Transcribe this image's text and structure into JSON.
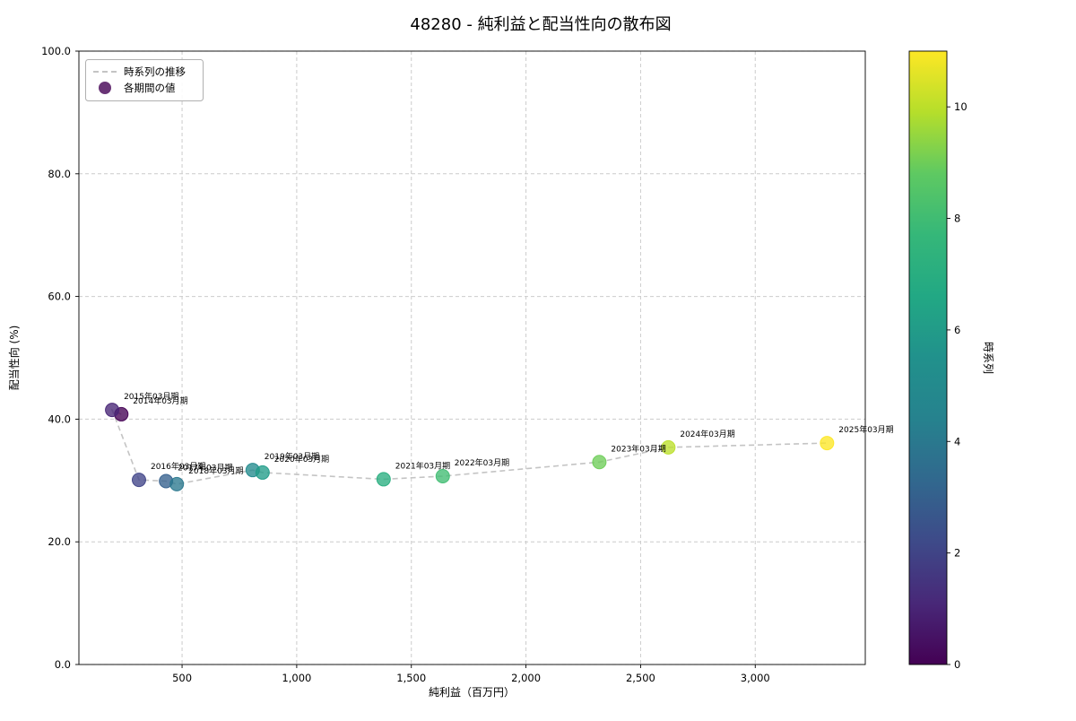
{
  "title": "48280 - 純利益と配当性向の散布図",
  "chart_data": {
    "type": "scatter",
    "xlabel": "純利益（百万円）",
    "ylabel": "配当性向 (%)",
    "xlim": [
      50,
      3480
    ],
    "ylim": [
      0,
      100
    ],
    "x_ticks": [
      500,
      1000,
      1500,
      2000,
      2500,
      3000
    ],
    "x_tick_labels": [
      "500",
      "1,000",
      "1,500",
      "2,000",
      "2,500",
      "3,000"
    ],
    "y_ticks": [
      0,
      20,
      40,
      60,
      80,
      100
    ],
    "y_tick_labels": [
      "0.0",
      "20.0",
      "40.0",
      "60.0",
      "80.0",
      "100.0"
    ],
    "grid": true,
    "line_color": "#c4c4c4",
    "legend": {
      "items": [
        {
          "label": "時系列の推移",
          "type": "dashed-line",
          "color": "#b0b0b0"
        },
        {
          "label": "各期間の値",
          "type": "point",
          "color": "#440154"
        }
      ]
    },
    "colorbar": {
      "label": "時系列",
      "min": 0,
      "max": 11,
      "ticks": [
        0,
        2,
        4,
        6,
        8,
        10
      ],
      "colormap": "viridis",
      "gradient_stops": [
        "#440154",
        "#482878",
        "#3e4a89",
        "#31688e",
        "#26828e",
        "#21918c",
        "#22a884",
        "#35b779",
        "#5ec962",
        "#b5de2b",
        "#fde725"
      ]
    },
    "points": [
      {
        "label": "2014年03月期",
        "x": 235,
        "y": 40.8,
        "t": 0,
        "color": "#440154"
      },
      {
        "label": "2015年03月期",
        "x": 195,
        "y": 41.5,
        "t": 1,
        "color": "#482576"
      },
      {
        "label": "2016年03月期",
        "x": 312,
        "y": 30.1,
        "t": 2,
        "color": "#404488"
      },
      {
        "label": "2017年03月期",
        "x": 430,
        "y": 29.9,
        "t": 3,
        "color": "#35608d"
      },
      {
        "label": "2018年03月期",
        "x": 477,
        "y": 29.4,
        "t": 4,
        "color": "#2a788e"
      },
      {
        "label": "2019年03月期",
        "x": 808,
        "y": 31.7,
        "t": 5,
        "color": "#238a8d"
      },
      {
        "label": "2020年03月期",
        "x": 851,
        "y": 31.3,
        "t": 6,
        "color": "#219c89"
      },
      {
        "label": "2021年03月期",
        "x": 1379,
        "y": 30.2,
        "t": 7,
        "color": "#29ae80"
      },
      {
        "label": "2022年03月期",
        "x": 1637,
        "y": 30.7,
        "t": 8,
        "color": "#40bd72"
      },
      {
        "label": "2023年03月期",
        "x": 2320,
        "y": 33.0,
        "t": 9,
        "color": "#6ecd59"
      },
      {
        "label": "2024年03月期",
        "x": 2621,
        "y": 35.4,
        "t": 10,
        "color": "#bbdf2a"
      },
      {
        "label": "2025年03月期",
        "x": 3313,
        "y": 36.1,
        "t": 11,
        "color": "#fde725"
      }
    ]
  }
}
